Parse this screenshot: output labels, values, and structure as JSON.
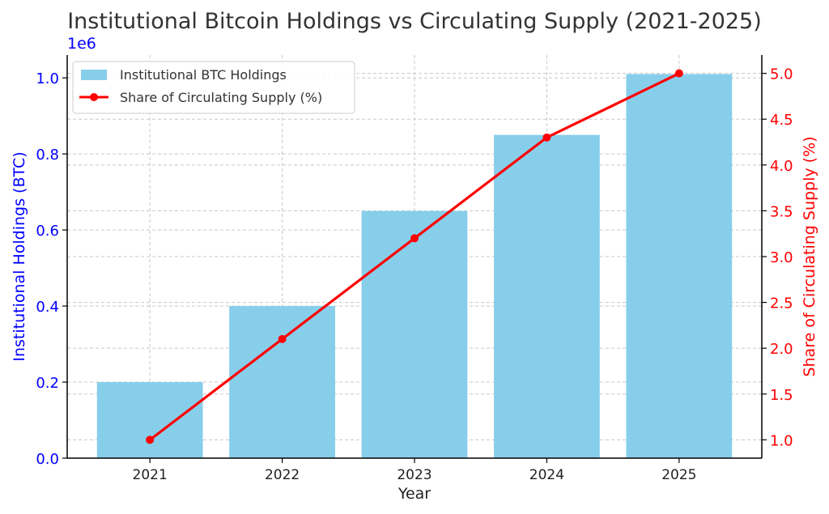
{
  "chart_data": {
    "type": "bar",
    "title": "Institutional Bitcoin Holdings vs Circulating Supply (2021-2025)",
    "xlabel": "Year",
    "categories": [
      "2021",
      "2022",
      "2023",
      "2024",
      "2025"
    ],
    "grid": true,
    "legend_position": "top-left",
    "y_left": {
      "label": "Institutional Holdings (BTC)",
      "offset_label": "1e6",
      "ylim": [
        0,
        1060000
      ],
      "ticks": [
        0,
        200000,
        400000,
        600000,
        800000,
        1000000
      ],
      "tick_labels": [
        "0.0",
        "0.2",
        "0.4",
        "0.6",
        "0.8",
        "1.0"
      ],
      "color": "#0000ff"
    },
    "y_right": {
      "label": "Share of Circulating Supply (%)",
      "ylim": [
        0.8,
        5.2
      ],
      "ticks": [
        1.0,
        1.5,
        2.0,
        2.5,
        3.0,
        3.5,
        4.0,
        4.5,
        5.0
      ],
      "tick_labels": [
        "1.0",
        "1.5",
        "2.0",
        "2.5",
        "3.0",
        "3.5",
        "4.0",
        "4.5",
        "5.0"
      ],
      "color": "#ff0000"
    },
    "series": [
      {
        "name": "Institutional BTC Holdings",
        "type": "bar",
        "axis": "left",
        "values": [
          200000,
          400000,
          650000,
          850000,
          1010000
        ],
        "color": "#87ceeb"
      },
      {
        "name": "Share of Circulating Supply (%)",
        "type": "line",
        "axis": "right",
        "values": [
          1.0,
          2.1,
          3.2,
          4.3,
          5.0
        ],
        "color": "#ff0000"
      }
    ]
  }
}
